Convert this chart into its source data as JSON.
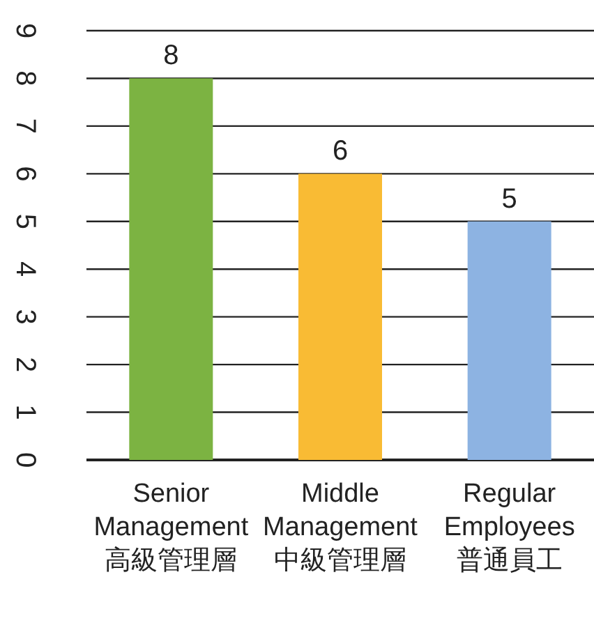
{
  "chart_data": {
    "type": "bar",
    "categories": [
      "Senior\nManagement\n高級管理層",
      "Middle\nManagement\n中級管理層",
      "Regular\nEmployees\n普通員工"
    ],
    "values": [
      8,
      6,
      5
    ],
    "colors": [
      "#7cb342",
      "#f9bb34",
      "#8db3e2"
    ],
    "ylim": [
      0,
      9
    ],
    "yticks": [
      0,
      1,
      2,
      3,
      4,
      5,
      6,
      7,
      8,
      9
    ],
    "grid": "y",
    "data_labels": true
  }
}
